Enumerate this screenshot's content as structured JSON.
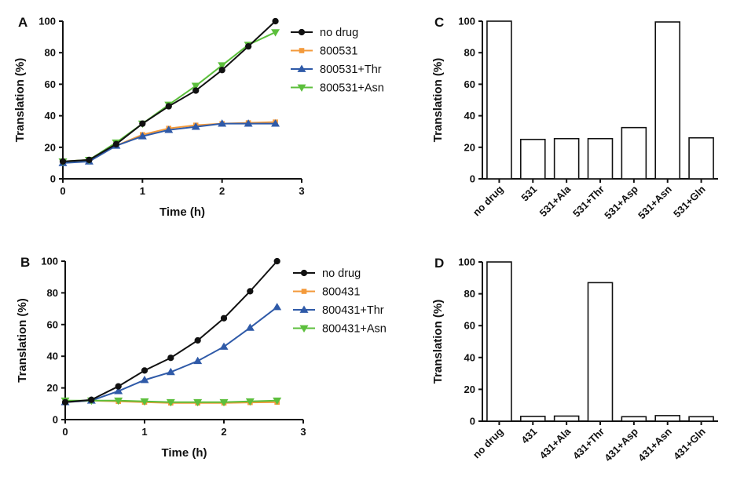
{
  "colors": {
    "no_drug": "#111111",
    "drug": "#f39a3b",
    "thr": "#2f5aa8",
    "asn": "#5cbf3c",
    "axis": "#111111",
    "bar_fill": "#ffffff",
    "bar_stroke": "#111111"
  },
  "chart_data": [
    {
      "panel": "A",
      "type": "line",
      "xlabel": "Time (h)",
      "ylabel": "Translation (%)",
      "xlim": [
        0,
        3
      ],
      "ylim": [
        0,
        100
      ],
      "xticks": [
        "0",
        "1",
        "2",
        "3"
      ],
      "yticks": [
        "0",
        "20",
        "40",
        "60",
        "80",
        "100"
      ],
      "grid": false,
      "legend_position": "right",
      "x": [
        0,
        0.33,
        0.67,
        1.0,
        1.33,
        1.67,
        2.0,
        2.33,
        2.67
      ],
      "series": [
        {
          "name": "no drug",
          "marker": "circle",
          "color": "#111111",
          "values": [
            11,
            12,
            22,
            35,
            46,
            56,
            69,
            84,
            100
          ]
        },
        {
          "name": "800531",
          "marker": "square",
          "color": "#f39a3b",
          "values": [
            11,
            12,
            21,
            28,
            32,
            34,
            35,
            35.5,
            36
          ]
        },
        {
          "name": "800531+Thr",
          "marker": "triangle-up",
          "color": "#2f5aa8",
          "values": [
            10,
            11,
            21,
            27,
            31,
            33,
            35,
            35,
            35
          ]
        },
        {
          "name": "800531+Asn",
          "marker": "triangle-down",
          "color": "#5cbf3c",
          "values": [
            11,
            12,
            23,
            35,
            47,
            59,
            72,
            85,
            93
          ]
        }
      ]
    },
    {
      "panel": "B",
      "type": "line",
      "xlabel": "Time (h)",
      "ylabel": "Translation (%)",
      "xlim": [
        0,
        3
      ],
      "ylim": [
        0,
        100
      ],
      "xticks": [
        "0",
        "1",
        "2",
        "3"
      ],
      "yticks": [
        "0",
        "20",
        "40",
        "60",
        "80",
        "100"
      ],
      "grid": false,
      "legend_position": "right",
      "x": [
        0,
        0.33,
        0.67,
        1.0,
        1.33,
        1.67,
        2.0,
        2.33,
        2.67
      ],
      "series": [
        {
          "name": "no drug",
          "marker": "circle",
          "color": "#111111",
          "values": [
            11,
            12.5,
            21,
            31,
            39,
            50,
            64,
            81,
            100
          ]
        },
        {
          "name": "800431",
          "marker": "square",
          "color": "#f39a3b",
          "values": [
            11,
            12,
            11.5,
            11,
            10.5,
            10.5,
            10.5,
            10.8,
            11
          ]
        },
        {
          "name": "800431+Thr",
          "marker": "triangle-up",
          "color": "#2f5aa8",
          "values": [
            11,
            12,
            18,
            25,
            30,
            37,
            46,
            58,
            71
          ]
        },
        {
          "name": "800431+Asn",
          "marker": "triangle-down",
          "color": "#5cbf3c",
          "values": [
            12,
            12,
            12,
            11.5,
            11,
            11,
            11,
            11.5,
            12
          ]
        }
      ]
    },
    {
      "panel": "C",
      "type": "bar",
      "xlabel": "",
      "ylabel": "Translation (%)",
      "ylim": [
        0,
        100
      ],
      "yticks": [
        "0",
        "20",
        "40",
        "60",
        "80",
        "100"
      ],
      "grid": false,
      "categories": [
        "no drug",
        "531",
        "531+Ala",
        "531+Thr",
        "531+Asp",
        "531+Asn",
        "531+Gln"
      ],
      "values": [
        100,
        25,
        25.5,
        25.5,
        32.5,
        99.5,
        26
      ]
    },
    {
      "panel": "D",
      "type": "bar",
      "xlabel": "",
      "ylabel": "Translation (%)",
      "ylim": [
        0,
        100
      ],
      "yticks": [
        "0",
        "20",
        "40",
        "60",
        "80",
        "100"
      ],
      "grid": false,
      "categories": [
        "no drug",
        "431",
        "431+Ala",
        "431+Thr",
        "431+Asp",
        "431+Asn",
        "431+Gln"
      ],
      "values": [
        100,
        3,
        3.2,
        87,
        2.8,
        3.5,
        2.8
      ]
    }
  ]
}
